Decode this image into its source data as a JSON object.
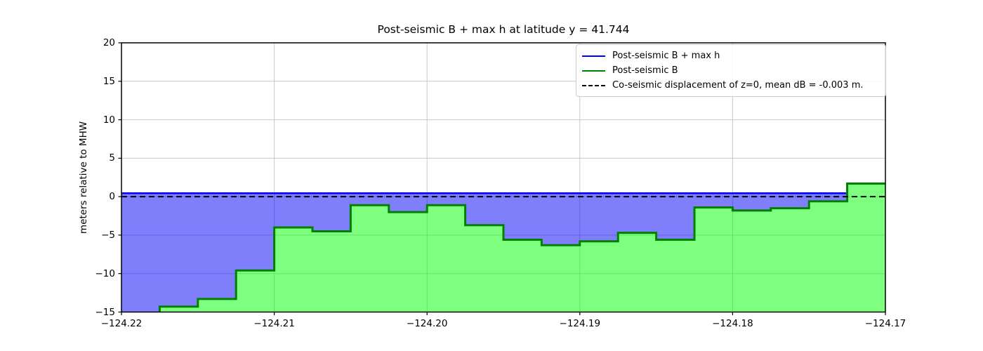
{
  "chart_data": {
    "type": "area",
    "title": "Post-seismic B + max h at latitude y = 41.744",
    "xlabel": "",
    "ylabel": "meters relative to MHW",
    "xlim": [
      -124.22,
      -124.17
    ],
    "ylim": [
      -15,
      20
    ],
    "xticks": [
      -124.22,
      -124.21,
      -124.2,
      -124.19,
      -124.18,
      -124.17
    ],
    "xtick_labels": [
      "−124.22",
      "−124.21",
      "−124.20",
      "−124.19",
      "−124.18",
      "−124.17"
    ],
    "yticks": [
      20,
      15,
      10,
      5,
      0,
      -5,
      -10,
      -15
    ],
    "ytick_labels": [
      "20",
      "15",
      "10",
      "5",
      "0",
      "−5",
      "−10",
      "−15"
    ],
    "grid": true,
    "grid_color": "#c9c9c9",
    "legend_position": "upper right",
    "series": [
      {
        "name": "Post-seismic B + max h",
        "type": "line",
        "color": "#0000ff",
        "value": 0.45
      },
      {
        "name": "Post-seismic B",
        "type": "step-fill",
        "edge_color": "#028002",
        "fill_color": "rgba(0,255,0,0.5)",
        "x_edges": [
          -124.22,
          -124.2175,
          -124.215,
          -124.2125,
          -124.21,
          -124.2075,
          -124.205,
          -124.2025,
          -124.2,
          -124.1975,
          -124.195,
          -124.1925,
          -124.19,
          -124.1875,
          -124.185,
          -124.1825,
          -124.18,
          -124.1775,
          -124.175,
          -124.1725,
          -124.17
        ],
        "values": [
          -15.6,
          -14.3,
          -13.3,
          -9.6,
          -4.0,
          -4.5,
          -1.1,
          -2.0,
          -1.1,
          -3.7,
          -5.6,
          -6.3,
          -5.8,
          -4.7,
          -5.6,
          -1.4,
          -1.8,
          -1.5,
          -0.6,
          1.7
        ]
      },
      {
        "name": "Co-seismic displacement of z=0, mean dB = -0.003 m.",
        "type": "hline",
        "y": 0.0,
        "color": "#000000",
        "dashed": true
      }
    ],
    "fill_between_color": "rgba(0,0,250,0.5)",
    "legend": [
      {
        "label": "Post-seismic B + max h",
        "color": "#0000ff",
        "dash": false
      },
      {
        "label": "Post-seismic B",
        "color": "#008000",
        "dash": false
      },
      {
        "label": "Co-seismic displacement of z=0, mean dB = -0.003 m.",
        "color": "#000000",
        "dash": true
      }
    ]
  }
}
